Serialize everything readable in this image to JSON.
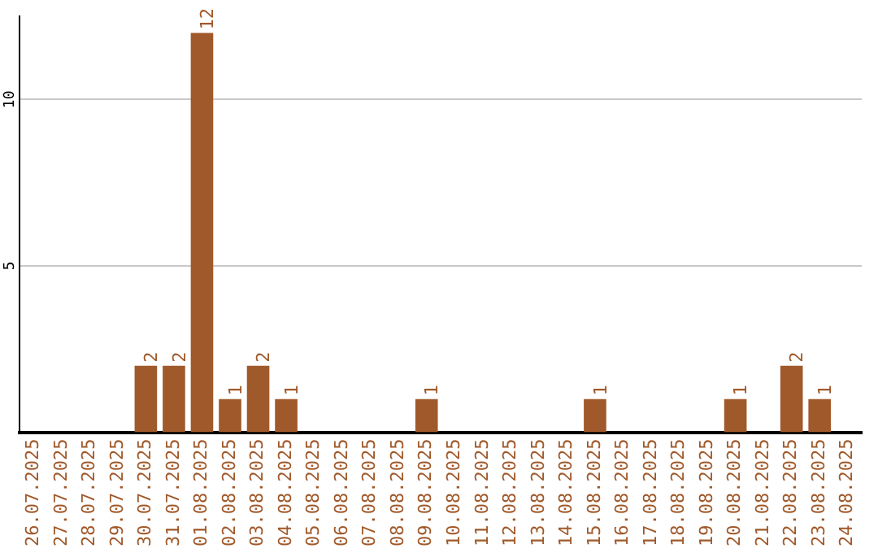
{
  "chart_data": {
    "type": "bar",
    "categories": [
      "26.07.2025",
      "27.07.2025",
      "28.07.2025",
      "29.07.2025",
      "30.07.2025",
      "31.07.2025",
      "01.08.2025",
      "02.08.2025",
      "03.08.2025",
      "04.08.2025",
      "05.08.2025",
      "06.08.2025",
      "07.08.2025",
      "08.08.2025",
      "09.08.2025",
      "10.08.2025",
      "11.08.2025",
      "12.08.2025",
      "13.08.2025",
      "14.08.2025",
      "15.08.2025",
      "16.08.2025",
      "17.08.2025",
      "18.08.2025",
      "19.08.2025",
      "20.08.2025",
      "21.08.2025",
      "22.08.2025",
      "23.08.2025",
      "24.08.2025"
    ],
    "values": [
      0,
      0,
      0,
      0,
      2,
      2,
      12,
      1,
      2,
      1,
      0,
      0,
      0,
      0,
      1,
      0,
      0,
      0,
      0,
      0,
      1,
      0,
      0,
      0,
      0,
      1,
      0,
      2,
      1,
      0
    ],
    "value_labels": [
      null,
      null,
      null,
      null,
      "2",
      "2",
      "12",
      "1",
      "2",
      "1",
      null,
      null,
      null,
      null,
      "1",
      null,
      null,
      null,
      null,
      null,
      "1",
      null,
      null,
      null,
      null,
      "1",
      null,
      "2",
      "1",
      null
    ],
    "color": "#a0592a",
    "ylim": [
      0,
      12.5
    ],
    "yticks": [
      5,
      10
    ],
    "grid": "y",
    "legend": false
  }
}
